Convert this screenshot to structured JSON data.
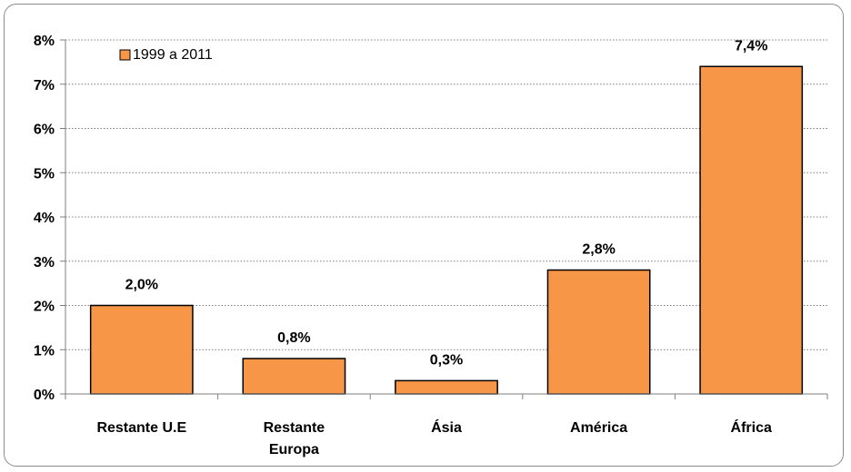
{
  "chart_data": {
    "type": "bar",
    "categories": [
      [
        "Restante U.E"
      ],
      [
        "Restante",
        "Europa"
      ],
      [
        "Ásia"
      ],
      [
        "América"
      ],
      [
        "África"
      ]
    ],
    "series": [
      {
        "name": "1999 a 2011",
        "values": [
          2.0,
          0.8,
          0.3,
          2.8,
          7.4
        ],
        "labels": [
          "2,0%",
          "0,8%",
          "0,3%",
          "2,8%",
          "7,4%"
        ]
      }
    ],
    "ylim": [
      0,
      8
    ],
    "yticks": [
      "0%",
      "1%",
      "2%",
      "3%",
      "4%",
      "5%",
      "6%",
      "7%",
      "8%"
    ],
    "grid": true,
    "legend_position": "top-left",
    "bar_color": "#f79646",
    "bar_outline": "#000000"
  }
}
